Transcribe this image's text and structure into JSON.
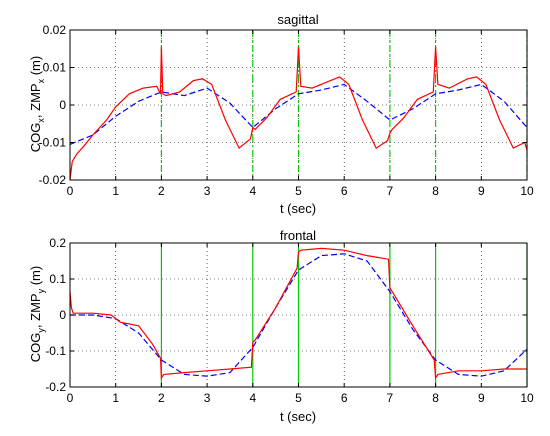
{
  "colors": {
    "cog": "#0000ff",
    "zmp": "#ff0000",
    "phase": "#00cc00",
    "grid": "#000000"
  },
  "chart_data": [
    {
      "type": "line",
      "title": "sagittal",
      "xlabel": "t (sec)",
      "ylabel": {
        "main1": "COG",
        "sub1": "x",
        "main2": ", ZMP",
        "sub2": "x",
        "main3": " (m)"
      },
      "xlim": [
        0,
        10
      ],
      "ylim": [
        -0.02,
        0.02
      ],
      "xticks": [
        "0",
        "1",
        "2",
        "3",
        "4",
        "5",
        "6",
        "7",
        "8",
        "9",
        "10"
      ],
      "yticks": [
        "-0.02",
        "-0.01",
        "0",
        "0.01",
        "0.02"
      ],
      "ytick_values": [
        -0.02,
        -0.01,
        0,
        0.01,
        0.02
      ],
      "grid": true,
      "phase_lines": [
        2,
        4,
        5,
        7,
        8,
        10
      ],
      "series": [
        {
          "style": "dashed",
          "color": "#0000ff",
          "x": [
            0,
            0.5,
            1,
            1.5,
            2,
            2.5,
            3,
            3.5,
            4,
            4.5,
            5,
            5.5,
            6,
            6.5,
            7,
            7.5,
            8,
            8.5,
            9,
            9.5,
            10
          ],
          "y": [
            -0.0105,
            -0.008,
            -0.003,
            0.001,
            0.0035,
            0.0025,
            0.0045,
            0.0005,
            -0.006,
            -0.001,
            0.003,
            0.004,
            0.0055,
            0.001,
            -0.004,
            -0.001,
            0.003,
            0.004,
            0.0055,
            0.001,
            -0.006
          ]
        },
        {
          "style": "solid",
          "color": "#ff0000",
          "x": [
            0,
            0.02,
            0.05,
            0.15,
            0.3,
            0.5,
            0.8,
            1.0,
            1.3,
            1.6,
            1.9,
            1.98,
            2.0,
            2.03,
            2.1,
            2.4,
            2.7,
            2.9,
            3.1,
            3.4,
            3.7,
            3.95,
            4.0,
            4.05,
            4.3,
            4.6,
            4.95,
            5.0,
            5.05,
            5.3,
            5.7,
            5.9,
            6.1,
            6.4,
            6.7,
            6.95,
            7.0,
            7.05,
            7.3,
            7.6,
            7.95,
            8.0,
            8.05,
            8.3,
            8.7,
            8.9,
            9.1,
            9.4,
            9.7,
            9.95,
            10
          ],
          "y": [
            -0.02,
            -0.018,
            -0.015,
            -0.013,
            -0.011,
            -0.008,
            -0.004,
            -0.0005,
            0.003,
            0.0045,
            0.005,
            0.003,
            0.0155,
            0.003,
            0.0025,
            0.0035,
            0.0065,
            0.007,
            0.0055,
            -0.004,
            -0.0115,
            -0.009,
            -0.006,
            -0.0065,
            -0.0035,
            0.0015,
            0.0035,
            0.0155,
            0.005,
            0.0045,
            0.0065,
            0.0075,
            0.0055,
            -0.004,
            -0.0115,
            -0.0095,
            -0.0075,
            -0.0065,
            -0.0035,
            0.0015,
            0.0035,
            0.0155,
            0.0055,
            0.0045,
            0.007,
            0.0075,
            0.0055,
            -0.004,
            -0.0115,
            -0.01,
            -0.012
          ]
        }
      ]
    },
    {
      "type": "line",
      "title": "frontal",
      "xlabel": "t (sec)",
      "ylabel": {
        "main1": "COG",
        "sub1": "y",
        "main2": ", ZMP",
        "sub2": "y",
        "main3": " (m)"
      },
      "xlim": [
        0,
        10
      ],
      "ylim": [
        -0.2,
        0.2
      ],
      "xticks": [
        "0",
        "1",
        "2",
        "3",
        "4",
        "5",
        "6",
        "7",
        "8",
        "9",
        "10"
      ],
      "yticks": [
        "-0.2",
        "-0.1",
        "0",
        "0.1",
        "0.2"
      ],
      "ytick_values": [
        -0.2,
        -0.1,
        0,
        0.1,
        0.2
      ],
      "grid": true,
      "phase_lines": [
        2,
        4,
        5,
        7,
        8,
        10
      ],
      "series": [
        {
          "style": "dashed",
          "color": "#0000ff",
          "x": [
            0,
            0.5,
            1,
            1.5,
            2,
            2.5,
            3,
            3.5,
            4,
            4.5,
            5,
            5.5,
            6,
            6.5,
            7,
            7.5,
            8,
            8.5,
            9,
            9.5,
            10
          ],
          "y": [
            0.0,
            0.0,
            -0.01,
            -0.05,
            -0.125,
            -0.165,
            -0.17,
            -0.16,
            -0.09,
            0.02,
            0.125,
            0.165,
            0.17,
            0.15,
            0.065,
            -0.04,
            -0.125,
            -0.165,
            -0.17,
            -0.155,
            -0.095
          ]
        },
        {
          "style": "solid",
          "color": "#ff0000",
          "x": [
            0,
            0.03,
            0.07,
            0.15,
            0.5,
            0.9,
            1.1,
            1.5,
            1.8,
            1.98,
            2.0,
            2.05,
            2.5,
            3.0,
            3.5,
            3.97,
            4.0,
            4.05,
            4.5,
            4.97,
            5.0,
            5.05,
            5.5,
            6.0,
            6.5,
            6.97,
            7.0,
            7.05,
            7.5,
            7.97,
            8.0,
            8.05,
            8.5,
            9.0,
            9.5,
            10
          ],
          "y": [
            0.065,
            0.02,
            0.005,
            0.005,
            0.005,
            0.0,
            -0.02,
            -0.03,
            -0.08,
            -0.12,
            -0.175,
            -0.165,
            -0.16,
            -0.155,
            -0.15,
            -0.145,
            -0.075,
            -0.07,
            0.02,
            0.13,
            0.175,
            0.18,
            0.185,
            0.18,
            0.165,
            0.155,
            0.075,
            0.065,
            -0.03,
            -0.125,
            -0.175,
            -0.165,
            -0.155,
            -0.155,
            -0.15,
            -0.15
          ]
        }
      ]
    }
  ]
}
